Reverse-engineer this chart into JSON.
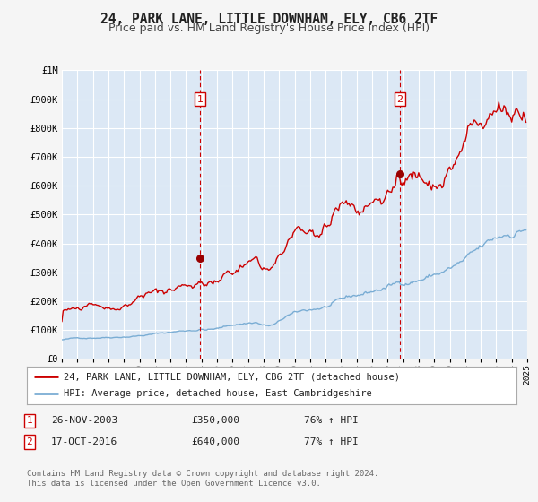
{
  "title": "24, PARK LANE, LITTLE DOWNHAM, ELY, CB6 2TF",
  "subtitle": "Price paid vs. HM Land Registry's House Price Index (HPI)",
  "title_fontsize": 10.5,
  "subtitle_fontsize": 9,
  "background_color": "#f5f5f5",
  "plot_bg_color": "#dce8f5",
  "grid_color": "#ffffff",
  "red_line_color": "#cc0000",
  "blue_line_color": "#7aadd4",
  "marker_color": "#990000",
  "sale1_x": 2003.9,
  "sale1_y": 350000,
  "sale1_label": "1",
  "sale2_x": 2016.79,
  "sale2_y": 640000,
  "sale2_label": "2",
  "vline_color": "#cc0000",
  "annotation_box_color": "#cc0000",
  "xmin": 1995,
  "xmax": 2025,
  "ymin": 0,
  "ymax": 1000000,
  "yticks": [
    0,
    100000,
    200000,
    300000,
    400000,
    500000,
    600000,
    700000,
    800000,
    900000,
    1000000
  ],
  "ytick_labels": [
    "£0",
    "£100K",
    "£200K",
    "£300K",
    "£400K",
    "£500K",
    "£600K",
    "£700K",
    "£800K",
    "£900K",
    "£1M"
  ],
  "legend_label_red": "24, PARK LANE, LITTLE DOWNHAM, ELY, CB6 2TF (detached house)",
  "legend_label_blue": "HPI: Average price, detached house, East Cambridgeshire",
  "note1_label": "1",
  "note1_date": "26-NOV-2003",
  "note1_price": "£350,000",
  "note1_hpi": "76% ↑ HPI",
  "note2_label": "2",
  "note2_date": "17-OCT-2016",
  "note2_price": "£640,000",
  "note2_hpi": "77% ↑ HPI",
  "footer1": "Contains HM Land Registry data © Crown copyright and database right 2024.",
  "footer2": "This data is licensed under the Open Government Licence v3.0."
}
